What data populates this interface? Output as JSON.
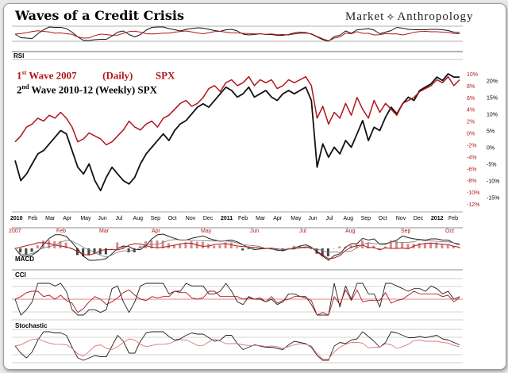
{
  "title": "Waves of a Credit Crisis",
  "brand": {
    "left": "Market",
    "right": "Anthropology"
  },
  "legend": [
    {
      "num": "1",
      "suffix": "st",
      "label": "Wave",
      "years": "2007",
      "freq": "(Daily)",
      "ticker": "SPX",
      "color": "#b0161a"
    },
    {
      "num": "2",
      "suffix": "nd",
      "label": "Wave",
      "years": "2010-12",
      "freq": "(Weekly)",
      "ticker": "SPX",
      "color": "#000000"
    }
  ],
  "colors": {
    "wave1": "#b0161a",
    "wave2": "#111111",
    "grid": "#c9c9c9",
    "panel_line": "#555555"
  },
  "panels": {
    "rsi": "RSI",
    "macd": "MACD",
    "cci": "CCI",
    "stochastic": "Stochastic"
  },
  "x_axis_top": [
    "2010",
    "Feb",
    "Mar",
    "Apr",
    "May",
    "Jun",
    "Jul",
    "Aug",
    "Sep",
    "Oct",
    "Nov",
    "Dec",
    "2011",
    "Feb",
    "Mar",
    "Apr",
    "May",
    "Jun",
    "Jul",
    "Aug",
    "Sep",
    "Oct",
    "Nov",
    "Dec",
    "2012",
    "Feb"
  ],
  "x_axis_red": [
    "2007",
    "Feb",
    "Mar",
    "Apr",
    "May",
    "Jun",
    "Jul",
    "Aug",
    "Sep",
    "Oct"
  ],
  "chart_data": {
    "type": "line",
    "title": "Waves of a Credit Crisis",
    "y_right_red_ticks": [
      "10%",
      "8%",
      "6%",
      "4%",
      "2%",
      "0%",
      "-2%",
      "-4%",
      "-6%",
      "-8%",
      "-10%",
      "-12%"
    ],
    "y_right_black_ticks": [
      "20%",
      "15%",
      "10%",
      "5%",
      "0%",
      "-5%",
      "-10%",
      "-15%"
    ],
    "ylim_red": [
      -12,
      10
    ],
    "ylim_black": [
      -17,
      22
    ],
    "series": [
      {
        "name": "1st Wave 2007 (Daily) SPX",
        "axis": "red",
        "values": [
          -1.5,
          -0.5,
          1.0,
          1.5,
          2.5,
          2.0,
          3.0,
          2.5,
          3.5,
          2.5,
          1.0,
          -1.5,
          -1.0,
          0.0,
          -0.5,
          -1.0,
          -2.0,
          -1.5,
          -0.5,
          0.5,
          2.0,
          1.0,
          0.5,
          1.5,
          2.0,
          1.0,
          2.5,
          3.0,
          4.0,
          5.0,
          5.5,
          4.5,
          5.0,
          6.0,
          7.5,
          8.0,
          7.0,
          8.5,
          9.0,
          8.0,
          8.5,
          9.5,
          8.0,
          9.0,
          8.5,
          9.0,
          7.5,
          8.0,
          9.0,
          8.5,
          9.0,
          9.5,
          8.0,
          2.5,
          4.5,
          1.5,
          3.5,
          2.5,
          5.0,
          3.0,
          6.0,
          4.0,
          2.5,
          5.5,
          3.5,
          5.0,
          4.0,
          3.0,
          5.0,
          5.5,
          6.0,
          7.0,
          7.5,
          8.0,
          9.0,
          8.5,
          9.5,
          8.0,
          9.0
        ]
      },
      {
        "name": "2nd Wave 2010-12 (Weekly) SPX",
        "axis": "black",
        "values": [
          -4,
          -10,
          -8,
          -5,
          -2,
          -1,
          1,
          3,
          5,
          4,
          -1,
          -6,
          -8,
          -5,
          -10,
          -13,
          -9,
          -6,
          -8,
          -10,
          -11,
          -9,
          -5,
          -2,
          0,
          2,
          4,
          2,
          5,
          7,
          8,
          10,
          12,
          13,
          12,
          14,
          16,
          18,
          17,
          15,
          16,
          18,
          15,
          16,
          17,
          15,
          14,
          16,
          17,
          16,
          17,
          18,
          14,
          -6,
          1,
          -3,
          0,
          -2,
          2,
          0,
          4,
          8,
          2,
          6,
          5,
          9,
          12,
          10,
          13,
          15,
          14,
          17,
          18,
          19,
          21,
          20,
          22,
          21,
          21
        ]
      }
    ],
    "indicator_panels": [
      "RSI",
      "MACD",
      "CCI",
      "Stochastic"
    ]
  }
}
